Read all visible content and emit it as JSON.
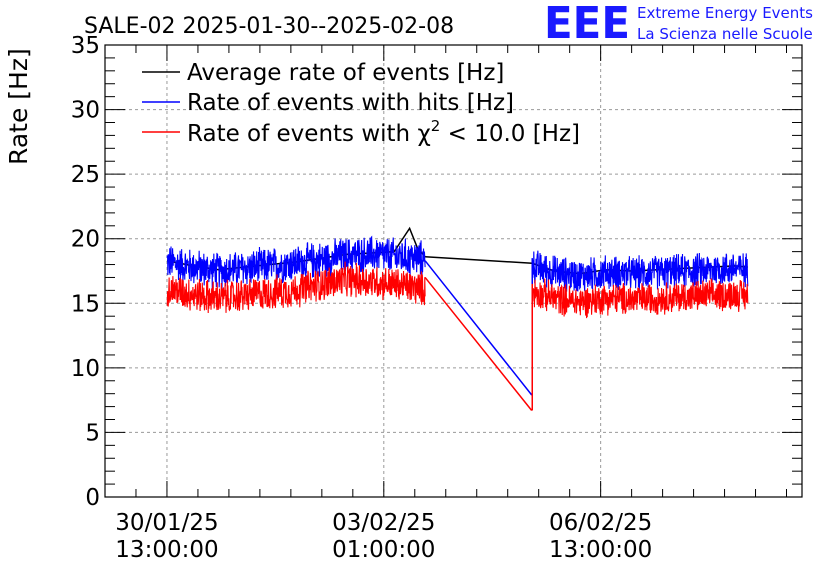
{
  "header": {
    "logo_text": "EEE",
    "logo_line1": "Extreme Energy Events",
    "logo_line2": "La Scienza nelle Scuole"
  },
  "chart_data": {
    "type": "line",
    "title": "SALE-02 2025-01-30--2025-02-08",
    "ylabel": "Rate [Hz]",
    "xlabel": "",
    "ylim": [
      0,
      35
    ],
    "yticks": [
      "0",
      "5",
      "10",
      "15",
      "20",
      "25",
      "30",
      "35"
    ],
    "xticks": [
      {
        "hour": 0,
        "line1": "30/01/25",
        "line2": "13:00:00"
      },
      {
        "hour": 84,
        "line1": "03/02/25",
        "line2": "01:00:00"
      },
      {
        "hour": 168,
        "line1": "06/02/25",
        "line2": "13:00:00"
      }
    ],
    "xlim_hours": [
      -24,
      246
    ],
    "grid": true,
    "legend_position": "top-left",
    "legend": [
      {
        "label": "Average rate of events [Hz]",
        "color": "#000000"
      },
      {
        "label": "Rate of events with hits [Hz]",
        "color": "#0000ff"
      },
      {
        "label": "Rate of events with",
        "sup": "2",
        "label_suffix": " < 10.0 [Hz]",
        "color": "#ff0000"
      }
    ],
    "series": [
      {
        "name": "Average rate of events [Hz]",
        "color": "#000000",
        "segments": [
          {
            "x": [
              0,
              10,
              20,
              30,
              40,
              50,
              60,
              70,
              80,
              88,
              92,
              94,
              97,
              100
            ],
            "y": [
              18.3,
              17.9,
              17.6,
              17.8,
              18.0,
              18.2,
              18.5,
              18.8,
              18.9,
              19.0,
              20.2,
              20.8,
              19.3,
              18.6
            ]
          },
          {
            "x": [
              100,
              141.5
            ],
            "y": [
              18.6,
              18.1
            ]
          },
          {
            "x": [
              141.5,
              150,
              160,
              170,
              180,
              190,
              200,
              210,
              220,
              225
            ],
            "y": [
              18.1,
              17.5,
              17.3,
              17.6,
              17.5,
              17.6,
              17.7,
              17.8,
              17.9,
              17.8
            ]
          }
        ]
      },
      {
        "name": "Rate of events with hits [Hz]",
        "color": "#0000ff",
        "band_segments": [
          {
            "x": [
              0,
              10,
              20,
              30,
              40,
              50,
              60,
              70,
              80,
              90,
              100
            ],
            "mean": [
              18.2,
              17.8,
              17.5,
              17.7,
              17.9,
              18.1,
              18.4,
              18.7,
              18.8,
              18.6,
              18.4
            ],
            "amp": 1.6
          },
          {
            "x": [
              141.5,
              150,
              160,
              170,
              180,
              190,
              200,
              210,
              220,
              225
            ],
            "mean": [
              17.9,
              17.4,
              17.1,
              17.4,
              17.3,
              17.4,
              17.5,
              17.6,
              17.7,
              17.6
            ],
            "amp": 1.5
          }
        ],
        "connectors": [
          {
            "x": [
              100,
              141.3
            ],
            "y": [
              18.3,
              7.9
            ]
          },
          {
            "x": [
              141.5,
              141.5
            ],
            "y": [
              7.9,
              18.5
            ]
          }
        ]
      },
      {
        "name": "Rate of events with chi2 < 10.0 [Hz]",
        "color": "#ff0000",
        "band_segments": [
          {
            "x": [
              0,
              10,
              20,
              30,
              40,
              50,
              60,
              70,
              80,
              90,
              100
            ],
            "mean": [
              16.1,
              15.7,
              15.4,
              15.6,
              15.8,
              16.0,
              16.5,
              16.8,
              16.7,
              16.4,
              16.1
            ],
            "amp": 1.5
          },
          {
            "x": [
              141.5,
              150,
              160,
              170,
              180,
              190,
              200,
              210,
              220,
              225
            ],
            "mean": [
              15.9,
              15.4,
              15.1,
              15.4,
              15.3,
              15.4,
              15.5,
              15.6,
              15.7,
              15.6
            ],
            "amp": 1.4
          }
        ],
        "connectors": [
          {
            "x": [
              100,
              141.3
            ],
            "y": [
              17.0,
              6.7
            ]
          },
          {
            "x": [
              141.5,
              141.5
            ],
            "y": [
              6.7,
              16.5
            ]
          }
        ]
      }
    ]
  }
}
